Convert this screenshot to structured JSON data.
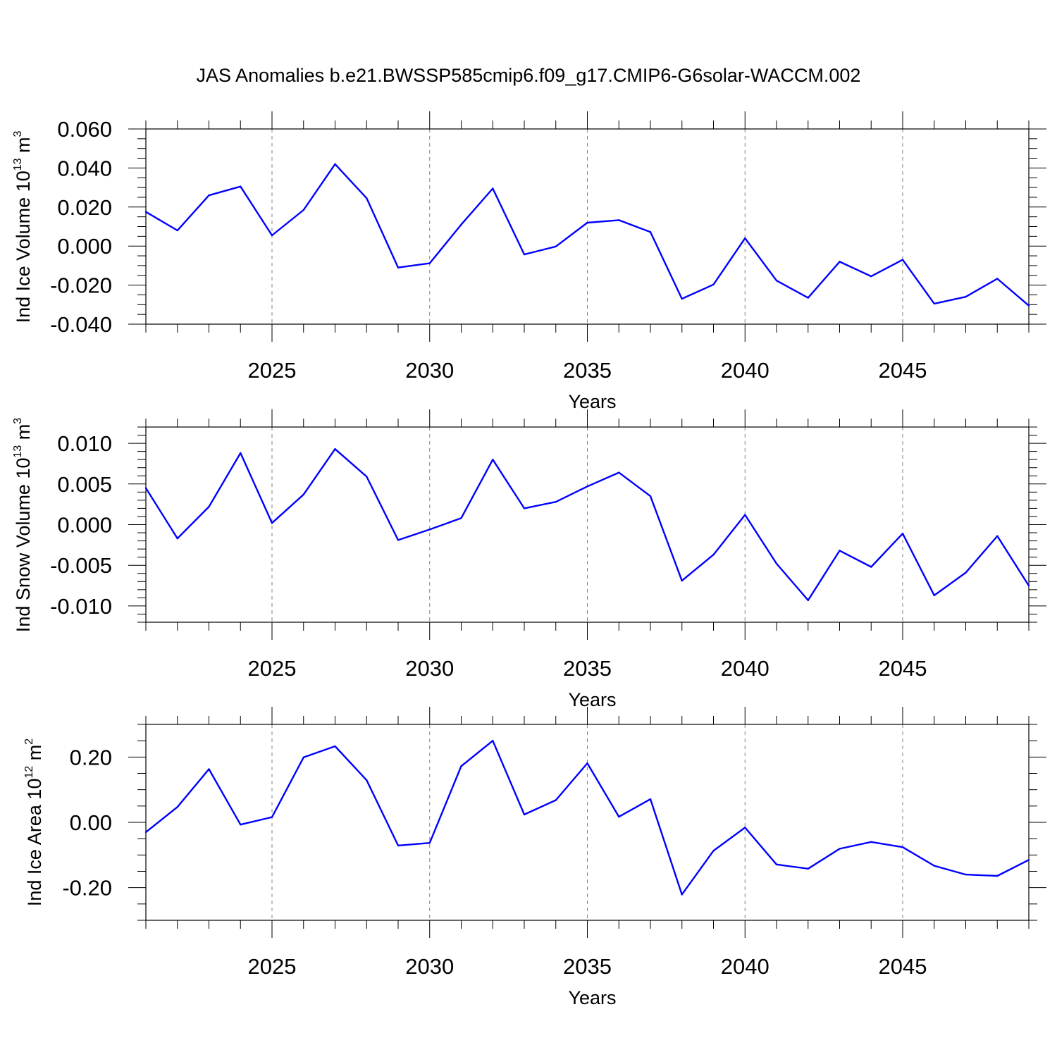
{
  "title": "JAS Anomalies b.e21.BWSSP585cmip6.f09_g17.CMIP6-G6solar-WACCM.002",
  "colors": {
    "series": "#0000ff",
    "axis": "#000000",
    "grid": "#808080"
  },
  "chart_data": [
    {
      "type": "line",
      "ylabel": "Ind Ice Volume",
      "yunit_base": "10",
      "yunit_exp": "13",
      "yunit_tail": "m",
      "yunit_power": "3",
      "xlabel": "Years",
      "xlim": [
        2021,
        2049
      ],
      "ylim": [
        -0.04,
        0.06
      ],
      "yticks": [
        -0.04,
        -0.02,
        0.0,
        0.02,
        0.04,
        0.06
      ],
      "yticklabels": [
        "-0.040",
        "-0.020",
        "0.000",
        "0.020",
        "0.040",
        "0.060"
      ],
      "yminor_step": 0.005,
      "xticks": [
        2025,
        2030,
        2035,
        2040,
        2045
      ],
      "xticklabels": [
        "2025",
        "2030",
        "2035",
        "2040",
        "2045"
      ],
      "grid": "vertical dashed at major x ticks",
      "x": [
        2021,
        2022,
        2023,
        2024,
        2025,
        2026,
        2027,
        2028,
        2029,
        2030,
        2031,
        2032,
        2033,
        2034,
        2035,
        2036,
        2037,
        2038,
        2039,
        2040,
        2041,
        2042,
        2043,
        2044,
        2045,
        2046,
        2047,
        2048,
        2049
      ],
      "values": [
        0.0175,
        0.008,
        0.026,
        0.0305,
        0.0055,
        0.0185,
        0.042,
        0.0245,
        -0.011,
        -0.0088,
        0.011,
        0.0295,
        -0.0043,
        -0.0002,
        0.012,
        0.0133,
        0.0072,
        -0.027,
        -0.0197,
        0.004,
        -0.0177,
        -0.0265,
        -0.008,
        -0.0155,
        -0.007,
        -0.0295,
        -0.026,
        -0.0167,
        -0.0305
      ]
    },
    {
      "type": "line",
      "ylabel": "Ind Snow Volume",
      "yunit_base": "10",
      "yunit_exp": "13",
      "yunit_tail": "m",
      "yunit_power": "3",
      "xlabel": "Years",
      "xlim": [
        2021,
        2049
      ],
      "ylim": [
        -0.012,
        0.012
      ],
      "yticks": [
        -0.01,
        -0.005,
        0.0,
        0.005,
        0.01
      ],
      "yticklabels": [
        "-0.010",
        "-0.005",
        "0.000",
        "0.005",
        "0.010"
      ],
      "yminor_step": 0.001,
      "xticks": [
        2025,
        2030,
        2035,
        2040,
        2045
      ],
      "xticklabels": [
        "2025",
        "2030",
        "2035",
        "2040",
        "2045"
      ],
      "grid": "vertical dashed at major x ticks",
      "x": [
        2021,
        2022,
        2023,
        2024,
        2025,
        2026,
        2027,
        2028,
        2029,
        2030,
        2031,
        2032,
        2033,
        2034,
        2035,
        2036,
        2037,
        2038,
        2039,
        2040,
        2041,
        2042,
        2043,
        2044,
        2045,
        2046,
        2047,
        2048,
        2049
      ],
      "values": [
        0.0045,
        -0.0017,
        0.0022,
        0.0088,
        0.0002,
        0.0037,
        0.0093,
        0.0059,
        -0.0019,
        -0.0006,
        0.0008,
        0.008,
        0.002,
        0.0028,
        0.0047,
        0.0064,
        0.0035,
        -0.0069,
        -0.0037,
        0.0012,
        -0.0048,
        -0.0093,
        -0.0032,
        -0.0052,
        -0.0011,
        -0.0087,
        -0.0059,
        -0.0014,
        -0.0075
      ]
    },
    {
      "type": "line",
      "ylabel": "Ind Ice Area",
      "yunit_base": "10",
      "yunit_exp": "12",
      "yunit_tail": "m",
      "yunit_power": "2",
      "xlabel": "Years",
      "xlim": [
        2021,
        2049
      ],
      "ylim": [
        -0.3,
        0.3
      ],
      "yticks": [
        -0.2,
        0.0,
        0.2
      ],
      "yticklabels": [
        "-0.20",
        "0.00",
        "0.20"
      ],
      "yminor_step": 0.05,
      "xticks": [
        2025,
        2030,
        2035,
        2040,
        2045
      ],
      "xticklabels": [
        "2025",
        "2030",
        "2035",
        "2040",
        "2045"
      ],
      "grid": "vertical dashed at major x ticks",
      "x": [
        2021,
        2022,
        2023,
        2024,
        2025,
        2026,
        2027,
        2028,
        2029,
        2030,
        2031,
        2032,
        2033,
        2034,
        2035,
        2036,
        2037,
        2038,
        2039,
        2040,
        2041,
        2042,
        2043,
        2044,
        2045,
        2046,
        2047,
        2048,
        2049
      ],
      "values": [
        -0.03,
        0.047,
        0.163,
        -0.007,
        0.016,
        0.199,
        0.233,
        0.129,
        -0.071,
        -0.063,
        0.172,
        0.25,
        0.024,
        0.068,
        0.181,
        0.017,
        0.071,
        -0.221,
        -0.087,
        -0.016,
        -0.129,
        -0.142,
        -0.081,
        -0.06,
        -0.076,
        -0.133,
        -0.16,
        -0.164,
        -0.115
      ]
    }
  ]
}
